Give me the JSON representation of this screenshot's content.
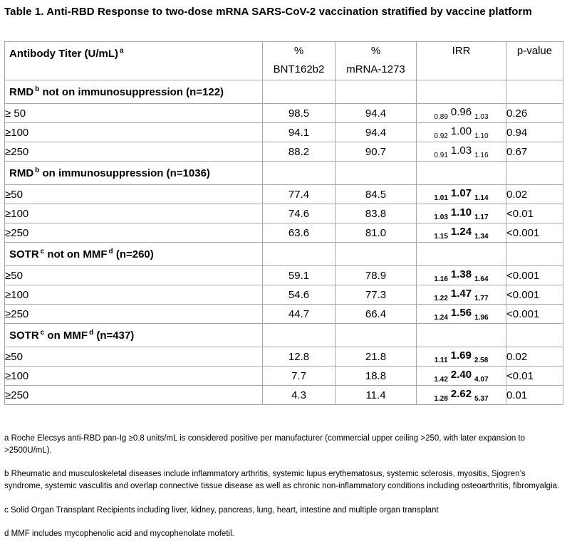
{
  "title": "Table 1. Anti-RBD Response to two-dose mRNA SARS-CoV-2 vaccination stratified by vaccine platform",
  "colors": {
    "table_border": "#a6a6a6",
    "text": "#000000",
    "background": "#ffffff"
  },
  "table": {
    "header": {
      "antibody_titer": "Antibody Titer (U/mL)",
      "antibody_titer_sup": "a",
      "pct_bnt_line1": "%",
      "pct_bnt_line2": "BNT162b2",
      "pct_mrna_line1": "%",
      "pct_mrna_line2": "mRNA-1273",
      "irr": "IRR",
      "pvalue": "p-value"
    },
    "groups": [
      {
        "label": [
          {
            "t": "RMD",
            "sup": false
          },
          {
            "t": "b",
            "sup": true
          },
          {
            "t": " not on immunosuppression (n=122)",
            "sup": false
          }
        ],
        "rows": [
          {
            "titer": "≥ 50",
            "pct_bnt162b2": "98.5",
            "pct_mrna1273": "94.4",
            "irr_low": "0.89",
            "irr": "0.96",
            "irr_high": "1.03",
            "irr_bold": false,
            "p_value": "0.26"
          },
          {
            "titer": "≥100",
            "pct_bnt162b2": "94.1",
            "pct_mrna1273": "94.4",
            "irr_low": "0.92",
            "irr": "1.00",
            "irr_high": "1.10",
            "irr_bold": false,
            "p_value": "0.94"
          },
          {
            "titer": "≥250",
            "pct_bnt162b2": "88.2",
            "pct_mrna1273": "90.7",
            "irr_low": "0.91",
            "irr": "1.03",
            "irr_high": "1.16",
            "irr_bold": false,
            "p_value": "0.67"
          }
        ]
      },
      {
        "label": [
          {
            "t": "RMD",
            "sup": false
          },
          {
            "t": "b",
            "sup": true
          },
          {
            "t": " on immunosuppression (n=1036)",
            "sup": false
          }
        ],
        "rows": [
          {
            "titer": "≥50",
            "pct_bnt162b2": "77.4",
            "pct_mrna1273": "84.5",
            "irr_low": "1.01",
            "irr": "1.07",
            "irr_high": "1.14",
            "irr_bold": true,
            "p_value": "0.02"
          },
          {
            "titer": "≥100",
            "pct_bnt162b2": "74.6",
            "pct_mrna1273": "83.8",
            "irr_low": "1.03",
            "irr": "1.10",
            "irr_high": "1.17",
            "irr_bold": true,
            "p_value": "<0.01"
          },
          {
            "titer": "≥250",
            "pct_bnt162b2": "63.6",
            "pct_mrna1273": "81.0",
            "irr_low": "1.15",
            "irr": "1.24",
            "irr_high": "1.34",
            "irr_bold": true,
            "p_value": "<0.001"
          }
        ]
      },
      {
        "label": [
          {
            "t": "SOTR",
            "sup": false
          },
          {
            "t": "c",
            "sup": true
          },
          {
            "t": " not on MMF",
            "sup": false
          },
          {
            "t": "d",
            "sup": true
          },
          {
            "t": " (n=260)",
            "sup": false
          }
        ],
        "rows": [
          {
            "titer": "≥50",
            "pct_bnt162b2": "59.1",
            "pct_mrna1273": "78.9",
            "irr_low": "1.16",
            "irr": "1.38",
            "irr_high": "1.64",
            "irr_bold": true,
            "p_value": "<0.001"
          },
          {
            "titer": "≥100",
            "pct_bnt162b2": "54.6",
            "pct_mrna1273": "77.3",
            "irr_low": "1.22",
            "irr": "1.47",
            "irr_high": "1.77",
            "irr_bold": true,
            "p_value": "<0.001"
          },
          {
            "titer": "≥250",
            "pct_bnt162b2": "44.7",
            "pct_mrna1273": "66.4",
            "irr_low": "1.24",
            "irr": "1.56",
            "irr_high": "1.96",
            "irr_bold": true,
            "p_value": "<0.001"
          }
        ]
      },
      {
        "label": [
          {
            "t": "SOTR",
            "sup": false
          },
          {
            "t": "c",
            "sup": true
          },
          {
            "t": " on MMF",
            "sup": false
          },
          {
            "t": "d",
            "sup": true
          },
          {
            "t": " (n=437)",
            "sup": false
          }
        ],
        "rows": [
          {
            "titer": "≥50",
            "pct_bnt162b2": "12.8",
            "pct_mrna1273": "21.8",
            "irr_low": "1.11",
            "irr": "1.69",
            "irr_high": "2.58",
            "irr_bold": true,
            "p_value": "0.02"
          },
          {
            "titer": "≥100",
            "pct_bnt162b2": "7.7",
            "pct_mrna1273": "18.8",
            "irr_low": "1.42",
            "irr": "2.40",
            "irr_high": "4.07",
            "irr_bold": true,
            "p_value": "<0.01"
          },
          {
            "titer": "≥250",
            "pct_bnt162b2": "4.3",
            "pct_mrna1273": "11.4",
            "irr_low": "1.28",
            "irr": "2.62",
            "irr_high": "5.37",
            "irr_bold": true,
            "p_value": "0.01"
          }
        ]
      }
    ]
  },
  "footnotes": [
    {
      "marker": "a",
      "text": " Roche Elecsys anti-RBD pan-Ig ≥0.8 units/mL is considered positive per manufacturer (commercial upper ceiling >250, with later expansion to >2500U/mL)."
    },
    {
      "marker": "b",
      "text": "Rheumatic and musculoskeletal diseases include inflammatory arthritis, systemic lupus erythematosus, systemic sclerosis, myositis, Sjogren’s syndrome, systemic vasculitis and overlap connective tissue disease as well as chronic non-inflammatory conditions including osteoarthritis, fibromyalgia."
    },
    {
      "marker": "c",
      "text": "Solid Organ Transplant Recipients including liver, kidney, pancreas, lung, heart, intestine and multiple organ transplant"
    },
    {
      "marker": "d",
      "text": "MMF includes mycophenolic acid and mycophenolate mofetil."
    }
  ]
}
